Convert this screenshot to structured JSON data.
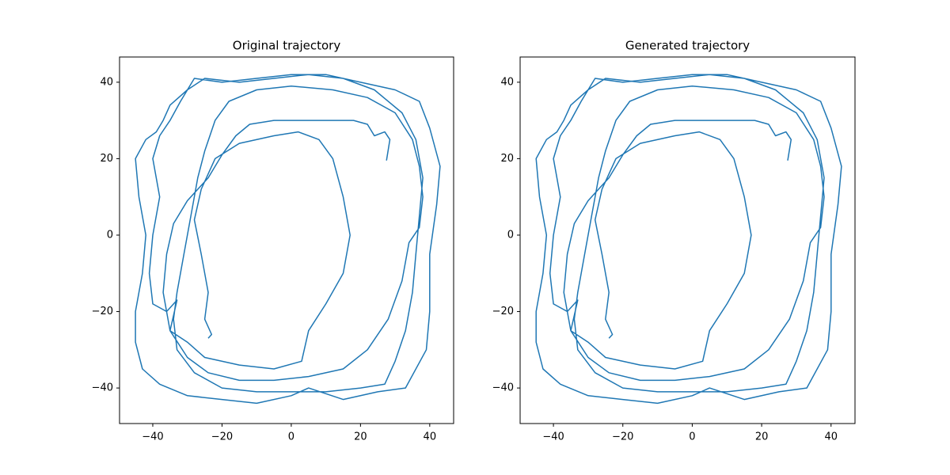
{
  "chart_data": [
    {
      "type": "line",
      "title": "Original trajectory",
      "color": "#1f77b4",
      "xlim": [
        -49.6,
        46.9
      ],
      "ylim": [
        -49.3,
        46.6
      ],
      "xticks": [
        {
          "value": -40,
          "label": "−40"
        },
        {
          "value": -20,
          "label": "−20"
        },
        0,
        20,
        40
      ],
      "yticks": [
        {
          "value": -40,
          "label": "−40"
        },
        {
          "value": -20,
          "label": "−20"
        },
        0,
        20,
        40
      ],
      "x": [
        27.5,
        28.5,
        27,
        24,
        22,
        18,
        10,
        2,
        -5,
        -12,
        -16,
        -20,
        -24,
        -30,
        -34,
        -36,
        -37,
        -35,
        -30,
        -24,
        -15,
        -5,
        5,
        15,
        22,
        28,
        32,
        34,
        37,
        38,
        37,
        35,
        30,
        22,
        12,
        0,
        -10,
        -18,
        -22,
        -25,
        -27,
        -29,
        -31,
        -33,
        -34,
        -33,
        -28,
        -20,
        -10,
        0,
        10,
        20,
        27,
        30,
        33,
        35,
        36,
        37,
        38,
        36,
        32,
        24,
        15,
        5,
        -5,
        -15,
        -25,
        -30,
        -35,
        -37,
        -39,
        -42,
        -45,
        -44,
        -42,
        -43,
        -45,
        -45,
        -43,
        -38,
        -30,
        -20,
        -10,
        0,
        5,
        15,
        25,
        33,
        39,
        40,
        40,
        42,
        43,
        40,
        37,
        30,
        20,
        10,
        0,
        -10,
        -20,
        -28,
        -32,
        -35,
        -38,
        -40,
        -38,
        -40,
        -41,
        -40,
        -36,
        -33,
        -35,
        -30,
        -25,
        -15,
        -5,
        3,
        5,
        10,
        15,
        17,
        15,
        12,
        8,
        2,
        -5,
        -15,
        -22,
        -26,
        -28,
        -26,
        -24,
        -25,
        -23,
        -24
      ],
      "y": [
        19.5,
        25,
        27,
        26,
        29,
        30,
        30,
        30,
        30,
        29,
        26,
        21,
        15,
        9,
        3,
        -5,
        -15,
        -25,
        -32,
        -36,
        -38,
        -38,
        -37,
        -35,
        -30,
        -22,
        -12,
        -2,
        2,
        10,
        18,
        25,
        32,
        36,
        38,
        39,
        38,
        35,
        30,
        22,
        15,
        5,
        -5,
        -15,
        -22,
        -30,
        -36,
        -40,
        -41,
        -41,
        -41,
        -40,
        -39,
        -33,
        -25,
        -15,
        -5,
        5,
        15,
        25,
        32,
        38,
        41,
        42,
        41,
        40,
        41,
        38,
        34,
        30,
        27,
        25,
        20,
        10,
        0,
        -10,
        -20,
        -28,
        -35,
        -39,
        -42,
        -43,
        -44,
        -42,
        -40,
        -43,
        -41,
        -40,
        -30,
        -20,
        -5,
        8,
        18,
        28,
        35,
        38,
        40,
        42,
        42,
        41,
        40,
        41,
        35,
        30,
        26,
        20,
        10,
        0,
        -10,
        -18,
        -20,
        -17,
        -25,
        -28,
        -32,
        -34,
        -35,
        -33,
        -25,
        -18,
        -10,
        0,
        10,
        20,
        25,
        27,
        26,
        24,
        20,
        12,
        4,
        -5,
        -15,
        -22,
        -26,
        -27
      ]
    },
    {
      "type": "line",
      "title": "Generated trajectory",
      "color": "#1f77b4",
      "xlim": [
        -49.6,
        46.9
      ],
      "ylim": [
        -49.3,
        46.6
      ],
      "xticks": [
        {
          "value": -40,
          "label": "−40"
        },
        {
          "value": -20,
          "label": "−20"
        },
        0,
        20,
        40
      ],
      "yticks": [
        {
          "value": -40,
          "label": "−40"
        },
        {
          "value": -20,
          "label": "−20"
        },
        0,
        20,
        40
      ],
      "x": [
        27.5,
        28.5,
        27,
        24,
        22,
        18,
        10,
        2,
        -5,
        -12,
        -16,
        -20,
        -24,
        -30,
        -34,
        -36,
        -37,
        -35,
        -30,
        -24,
        -15,
        -5,
        5,
        15,
        22,
        28,
        32,
        34,
        37,
        38,
        37,
        35,
        30,
        22,
        12,
        0,
        -10,
        -18,
        -22,
        -25,
        -27,
        -29,
        -31,
        -33,
        -34,
        -33,
        -28,
        -20,
        -10,
        0,
        10,
        20,
        27,
        30,
        33,
        35,
        36,
        37,
        38,
        36,
        32,
        24,
        15,
        5,
        -5,
        -15,
        -25,
        -30,
        -35,
        -37,
        -39,
        -42,
        -45,
        -44,
        -42,
        -43,
        -45,
        -45,
        -43,
        -38,
        -30,
        -20,
        -10,
        0,
        5,
        15,
        25,
        33,
        39,
        40,
        40,
        42,
        43,
        40,
        37,
        30,
        20,
        10,
        0,
        -10,
        -20,
        -28,
        -32,
        -35,
        -38,
        -40,
        -38,
        -40,
        -41,
        -40,
        -36,
        -33,
        -35,
        -30,
        -25,
        -15,
        -5,
        3,
        5,
        10,
        15,
        17,
        15,
        12,
        8,
        2,
        -5,
        -15,
        -22,
        -26,
        -28,
        -26,
        -24,
        -25,
        -23,
        -24
      ],
      "y": [
        19.5,
        25,
        27,
        26,
        29,
        30,
        30,
        30,
        30,
        29,
        26,
        21,
        15,
        9,
        3,
        -5,
        -15,
        -25,
        -32,
        -36,
        -38,
        -38,
        -37,
        -35,
        -30,
        -22,
        -12,
        -2,
        2,
        10,
        18,
        25,
        32,
        36,
        38,
        39,
        38,
        35,
        30,
        22,
        15,
        5,
        -5,
        -15,
        -22,
        -30,
        -36,
        -40,
        -41,
        -41,
        -41,
        -40,
        -39,
        -33,
        -25,
        -15,
        -5,
        5,
        15,
        25,
        32,
        38,
        41,
        42,
        41,
        40,
        41,
        38,
        34,
        30,
        27,
        25,
        20,
        10,
        0,
        -10,
        -20,
        -28,
        -35,
        -39,
        -42,
        -43,
        -44,
        -42,
        -40,
        -43,
        -41,
        -40,
        -30,
        -20,
        -5,
        8,
        18,
        28,
        35,
        38,
        40,
        42,
        42,
        41,
        40,
        41,
        35,
        30,
        26,
        20,
        10,
        0,
        -10,
        -18,
        -20,
        -17,
        -25,
        -28,
        -32,
        -34,
        -35,
        -33,
        -25,
        -18,
        -10,
        0,
        10,
        20,
        25,
        27,
        26,
        24,
        20,
        12,
        4,
        -5,
        -15,
        -22,
        -26,
        -27
      ]
    }
  ]
}
